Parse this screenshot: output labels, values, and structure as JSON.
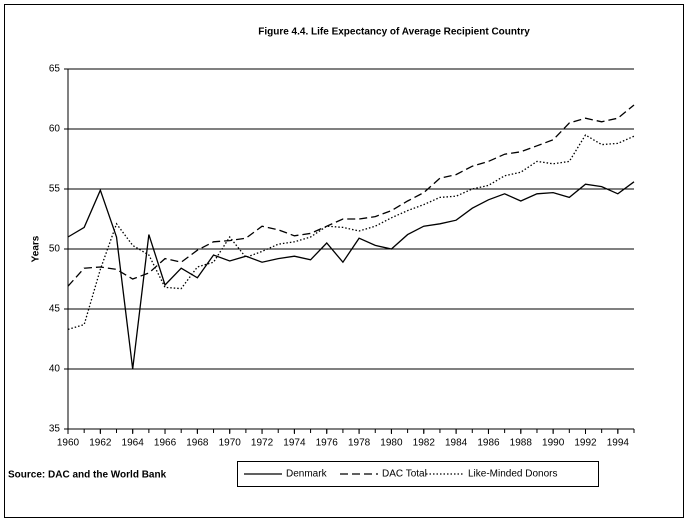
{
  "chart_data": {
    "type": "line",
    "title": "Figure 4.4.  Life Expectancy of Average Recipient Country",
    "y_label": "Years",
    "source": "Source: DAC and the World Bank",
    "x": [
      1960,
      1961,
      1962,
      1963,
      1964,
      1965,
      1966,
      1967,
      1968,
      1969,
      1970,
      1971,
      1972,
      1973,
      1974,
      1975,
      1976,
      1977,
      1978,
      1979,
      1980,
      1981,
      1982,
      1983,
      1984,
      1985,
      1986,
      1987,
      1988,
      1989,
      1990,
      1991,
      1992,
      1993,
      1994,
      1995
    ],
    "xlim": [
      1960,
      1995
    ],
    "xticks": [
      1960,
      1962,
      1964,
      1966,
      1968,
      1970,
      1972,
      1974,
      1976,
      1978,
      1980,
      1982,
      1984,
      1986,
      1988,
      1990,
      1992,
      1994
    ],
    "ylim": [
      35,
      65
    ],
    "yticks": [
      35,
      40,
      45,
      50,
      55,
      60,
      65
    ],
    "grid": true,
    "legend": "bottom",
    "series": [
      {
        "name": "Denmark",
        "color": "#000000",
        "dash": "none",
        "values": [
          51.0,
          51.8,
          54.9,
          51.0,
          40.0,
          51.2,
          47.0,
          48.4,
          47.6,
          49.5,
          49.0,
          49.4,
          48.9,
          49.2,
          49.4,
          49.1,
          50.5,
          48.9,
          50.9,
          50.3,
          50.0,
          51.2,
          51.9,
          52.1,
          52.4,
          53.4,
          54.1,
          54.6,
          54.0,
          54.6,
          54.7,
          54.3,
          55.4,
          55.2,
          54.6,
          55.6
        ]
      },
      {
        "name": "DAC Total",
        "color": "#000000",
        "dash": "8,4",
        "values": [
          46.9,
          48.4,
          48.5,
          48.3,
          47.5,
          48.0,
          49.2,
          48.9,
          49.9,
          50.6,
          50.7,
          50.9,
          51.9,
          51.6,
          51.1,
          51.3,
          51.9,
          52.5,
          52.5,
          52.7,
          53.2,
          54.0,
          54.7,
          55.9,
          56.2,
          56.9,
          57.3,
          57.9,
          58.1,
          58.6,
          59.1,
          60.5,
          60.9,
          60.6,
          60.9,
          62.0
        ]
      },
      {
        "name": "Like-Minded Donors",
        "color": "#000000",
        "dash": "1.5,2",
        "values": [
          43.3,
          43.7,
          48.3,
          52.1,
          50.3,
          49.5,
          46.8,
          46.7,
          48.5,
          48.9,
          51.0,
          49.3,
          49.8,
          50.4,
          50.6,
          51.0,
          51.9,
          51.8,
          51.5,
          51.9,
          52.6,
          53.2,
          53.7,
          54.3,
          54.4,
          55.0,
          55.3,
          56.1,
          56.4,
          57.3,
          57.1,
          57.3,
          59.5,
          58.7,
          58.8,
          59.4
        ]
      }
    ]
  }
}
